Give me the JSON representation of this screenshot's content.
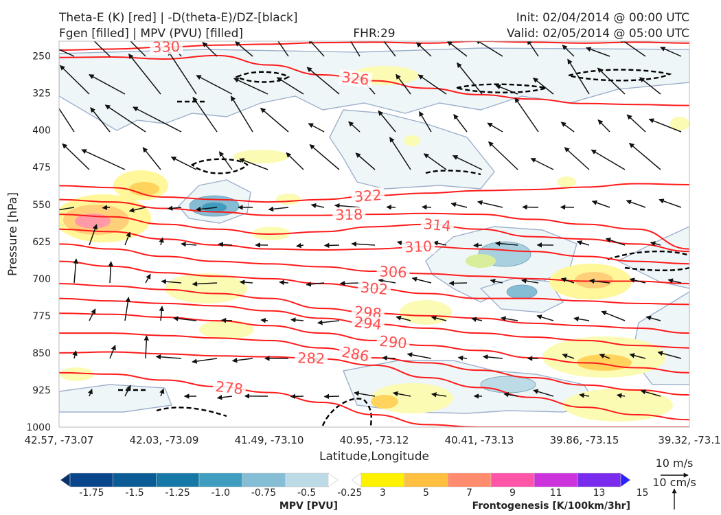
{
  "header": {
    "title_line1": "Theta-E (K) [red] | -D(theta-E)/DZ-[black]",
    "title_line2": "Fgen [filled] | MPV (PVU) [filled]",
    "fhr": "FHR:29",
    "init": "Init: 02/04/2014 @ 00:00 UTC",
    "valid": "Valid: 02/05/2014 @ 05:00 UTC"
  },
  "chart_data": {
    "type": "cross-section",
    "xlabel": "Latitude,Longitude",
    "ylabel": "Pressure [hPa]",
    "x_ticks": [
      "42.57, -73.07",
      "42.03, -73.09",
      "41.49, -73.10",
      "40.95, -73.12",
      "40.41, -73.13",
      "39.86, -73.15",
      "39.32, -73.1"
    ],
    "y_ticks": [
      250,
      325,
      400,
      475,
      550,
      625,
      700,
      775,
      850,
      925,
      1000
    ],
    "ylim": [
      1000,
      220
    ],
    "theta_e_contours": [
      {
        "label": "330",
        "y": [
          238,
          236,
          232,
          228,
          226,
          223,
          222,
          224,
          220,
          222,
          224,
          222,
          224
        ]
      },
      {
        "label": "326",
        "y": [
          253,
          252,
          256,
          249,
          268,
          288,
          300,
          315,
          328,
          337,
          346,
          348,
          350
        ]
      },
      {
        "label": "322",
        "y": [
          512,
          516,
          535,
          540,
          545,
          540,
          532,
          527,
          522,
          520,
          515,
          508,
          510
        ]
      },
      {
        "label": "318",
        "y": [
          540,
          545,
          558,
          565,
          572,
          572,
          570,
          568,
          570,
          580,
          590,
          600,
          640
        ]
      },
      {
        "label": "314",
        "y": [
          570,
          575,
          590,
          600,
          610,
          605,
          595,
          590,
          600,
          615,
          620,
          630,
          645
        ]
      },
      {
        "label": "310",
        "y": [
          600,
          605,
          620,
          632,
          640,
          642,
          640,
          635,
          640,
          645,
          655,
          665,
          670
        ]
      },
      {
        "label": "306",
        "y": [
          630,
          640,
          655,
          665,
          670,
          676,
          685,
          690,
          695,
          700,
          705,
          705,
          710
        ]
      },
      {
        "label": "302",
        "y": [
          665,
          675,
          688,
          695,
          700,
          710,
          720,
          730,
          740,
          740,
          745,
          750,
          752
        ]
      },
      {
        "label": "298",
        "y": [
          710,
          715,
          722,
          730,
          740,
          760,
          770,
          775,
          780,
          790,
          795,
          800,
          810
        ]
      },
      {
        "label": "294",
        "y": [
          740,
          745,
          750,
          755,
          765,
          780,
          792,
          800,
          810,
          818,
          825,
          835,
          840
        ]
      },
      {
        "label": "290",
        "y": [
          770,
          772,
          778,
          785,
          795,
          810,
          825,
          835,
          845,
          860,
          870,
          880,
          890
        ]
      },
      {
        "label": "286",
        "y": [
          810,
          810,
          815,
          820,
          825,
          840,
          860,
          870,
          885,
          900,
          915,
          925,
          935
        ]
      },
      {
        "label": "282",
        "y": [
          850,
          848,
          852,
          856,
          858,
          862,
          875,
          900,
          920,
          940,
          960,
          975,
          985
        ]
      },
      {
        "label": "278",
        "y": [
          890,
          893,
          905,
          918,
          930,
          950,
          975,
          995,
          1000,
          1000,
          1000,
          1000,
          1000
        ]
      }
    ],
    "mpv_colorbar": {
      "label": "MPV [PVU]",
      "ticks": [
        "-1.75",
        "-1.5",
        "-1.25",
        "-1.0",
        "-0.75",
        "-0.5",
        "-0.25"
      ],
      "colors": [
        "#08306b",
        "#08458b",
        "#0b5c96",
        "#1578a6",
        "#3f9dbf",
        "#84bdd4",
        "#bcdbe6",
        "#ffffff"
      ]
    },
    "fgen_colorbar": {
      "label": "Frontogenesis [K/100km/3hr]",
      "ticks": [
        "3",
        "5",
        "7",
        "9",
        "11",
        "13",
        "15"
      ],
      "colors": [
        "#ffffff",
        "#fff200",
        "#ffbf40",
        "#ff8c6e",
        "#ff55a8",
        "#cc33dd",
        "#7b2bee",
        "#2a22ff"
      ]
    },
    "vector_key": {
      "horizontal": "10 m/s",
      "vertical": "10 cm/s"
    }
  }
}
